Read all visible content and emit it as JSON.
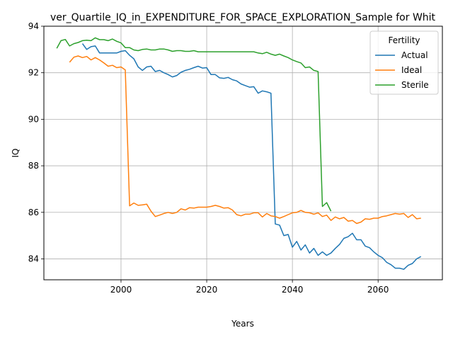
{
  "chart_data": {
    "type": "line",
    "title": "ver_Quartile_IQ_in_EXPENDITURE_FOR_SPACE_EXPLORATION_Sample for Whit",
    "xlabel": "Years",
    "ylabel": "IQ",
    "xlim": [
      1982,
      2075
    ],
    "ylim": [
      83.1,
      94.0
    ],
    "xticks": [
      2000,
      2020,
      2040,
      2060
    ],
    "yticks": [
      84,
      86,
      88,
      90,
      92,
      94
    ],
    "grid": true,
    "legend": {
      "title": "Fertility",
      "position": "top-right"
    },
    "series": [
      {
        "name": "Actual",
        "color": "#1f77b4",
        "x": [
          1991,
          1992,
          1993,
          1994,
          1995,
          1996,
          1997,
          1998,
          1999,
          2000,
          2001,
          2002,
          2003,
          2004,
          2005,
          2006,
          2007,
          2008,
          2009,
          2010,
          2011,
          2012,
          2013,
          2014,
          2015,
          2016,
          2017,
          2018,
          2019,
          2020,
          2021,
          2022,
          2023,
          2024,
          2025,
          2026,
          2027,
          2028,
          2029,
          2030,
          2031,
          2032,
          2033,
          2034,
          2035,
          2036,
          2037,
          2038,
          2039,
          2040,
          2041,
          2042,
          2043,
          2044,
          2045,
          2046,
          2047,
          2048,
          2049,
          2050,
          2051,
          2052,
          2053,
          2054,
          2055,
          2056,
          2057,
          2058,
          2059,
          2060,
          2061,
          2062,
          2063,
          2064,
          2065,
          2066,
          2067,
          2068,
          2069,
          2070
        ],
        "y": [
          93.25,
          93.0,
          93.12,
          93.15,
          92.85,
          92.85,
          92.85,
          92.85,
          92.85,
          92.92,
          92.95,
          92.75,
          92.6,
          92.25,
          92.1,
          92.25,
          92.28,
          92.05,
          92.1,
          92.0,
          91.92,
          91.82,
          91.88,
          92.02,
          92.1,
          92.15,
          92.22,
          92.28,
          92.2,
          92.22,
          91.92,
          91.92,
          91.78,
          91.76,
          91.8,
          91.7,
          91.65,
          91.52,
          91.45,
          91.38,
          91.4,
          91.12,
          91.22,
          91.18,
          91.12,
          85.5,
          85.45,
          85.0,
          85.05,
          84.5,
          84.75,
          84.38,
          84.6,
          84.25,
          84.45,
          84.15,
          84.3,
          84.15,
          84.25,
          84.45,
          84.62,
          84.88,
          84.95,
          85.1,
          84.82,
          84.82,
          84.55,
          84.48,
          84.3,
          84.15,
          84.05,
          83.85,
          83.75,
          83.6,
          83.6,
          83.55,
          83.72,
          83.8,
          84.0,
          84.1
        ]
      },
      {
        "name": "Ideal",
        "color": "#ff7f0e",
        "x": [
          1988,
          1989,
          1990,
          1991,
          1992,
          1993,
          1994,
          1995,
          1996,
          1997,
          1998,
          1999,
          2000,
          2001,
          2002,
          2003,
          2004,
          2005,
          2006,
          2007,
          2008,
          2009,
          2010,
          2011,
          2012,
          2013,
          2014,
          2015,
          2016,
          2017,
          2018,
          2019,
          2020,
          2021,
          2022,
          2023,
          2024,
          2025,
          2026,
          2027,
          2028,
          2029,
          2030,
          2031,
          2032,
          2033,
          2034,
          2035,
          2036,
          2037,
          2038,
          2039,
          2040,
          2041,
          2042,
          2043,
          2044,
          2045,
          2046,
          2047,
          2048,
          2049,
          2050,
          2051,
          2052,
          2053,
          2054,
          2055,
          2056,
          2057,
          2058,
          2059,
          2060,
          2061,
          2062,
          2063,
          2064,
          2065,
          2066,
          2067,
          2068,
          2069,
          2070
        ],
        "y": [
          92.45,
          92.67,
          92.72,
          92.65,
          92.7,
          92.55,
          92.65,
          92.55,
          92.42,
          92.28,
          92.32,
          92.22,
          92.25,
          92.12,
          86.28,
          86.4,
          86.3,
          86.32,
          86.35,
          86.05,
          85.82,
          85.88,
          85.95,
          86.0,
          85.95,
          86.0,
          86.15,
          86.1,
          86.2,
          86.18,
          86.22,
          86.22,
          86.22,
          86.25,
          86.3,
          86.25,
          86.18,
          86.2,
          86.1,
          85.9,
          85.85,
          85.92,
          85.92,
          85.98,
          85.98,
          85.8,
          85.95,
          85.85,
          85.82,
          85.75,
          85.82,
          85.9,
          85.98,
          86.0,
          86.08,
          86.0,
          85.98,
          85.92,
          85.98,
          85.82,
          85.88,
          85.65,
          85.8,
          85.72,
          85.78,
          85.62,
          85.65,
          85.52,
          85.58,
          85.72,
          85.7,
          85.75,
          85.75,
          85.82,
          85.85,
          85.9,
          85.95,
          85.92,
          85.95,
          85.78,
          85.9,
          85.72,
          85.75
        ]
      },
      {
        "name": "Sterile",
        "color": "#2ca02c",
        "x": [
          1985,
          1986,
          1987,
          1988,
          1989,
          1990,
          1991,
          1992,
          1993,
          1994,
          1995,
          1996,
          1997,
          1998,
          1999,
          2000,
          2001,
          2002,
          2003,
          2004,
          2005,
          2006,
          2007,
          2008,
          2009,
          2010,
          2011,
          2012,
          2013,
          2014,
          2015,
          2016,
          2017,
          2018,
          2019,
          2020,
          2021,
          2022,
          2023,
          2024,
          2025,
          2026,
          2027,
          2028,
          2029,
          2030,
          2031,
          2032,
          2033,
          2034,
          2035,
          2036,
          2037,
          2038,
          2039,
          2040,
          2041,
          2042,
          2043,
          2044,
          2045,
          2046,
          2047,
          2048,
          2049
        ],
        "y": [
          93.05,
          93.38,
          93.43,
          93.15,
          93.25,
          93.3,
          93.38,
          93.4,
          93.38,
          93.5,
          93.42,
          93.42,
          93.38,
          93.45,
          93.35,
          93.28,
          93.08,
          93.08,
          92.98,
          92.95,
          93.0,
          93.02,
          92.98,
          92.98,
          93.02,
          93.02,
          92.98,
          92.92,
          92.95,
          92.95,
          92.92,
          92.92,
          92.95,
          92.9,
          92.9,
          92.9,
          92.9,
          92.9,
          92.9,
          92.9,
          92.9,
          92.9,
          92.9,
          92.9,
          92.9,
          92.9,
          92.9,
          92.85,
          92.82,
          92.88,
          92.8,
          92.75,
          92.8,
          92.72,
          92.65,
          92.55,
          92.48,
          92.42,
          92.22,
          92.25,
          92.1,
          92.05,
          86.25,
          86.42,
          86.05
        ]
      }
    ]
  }
}
